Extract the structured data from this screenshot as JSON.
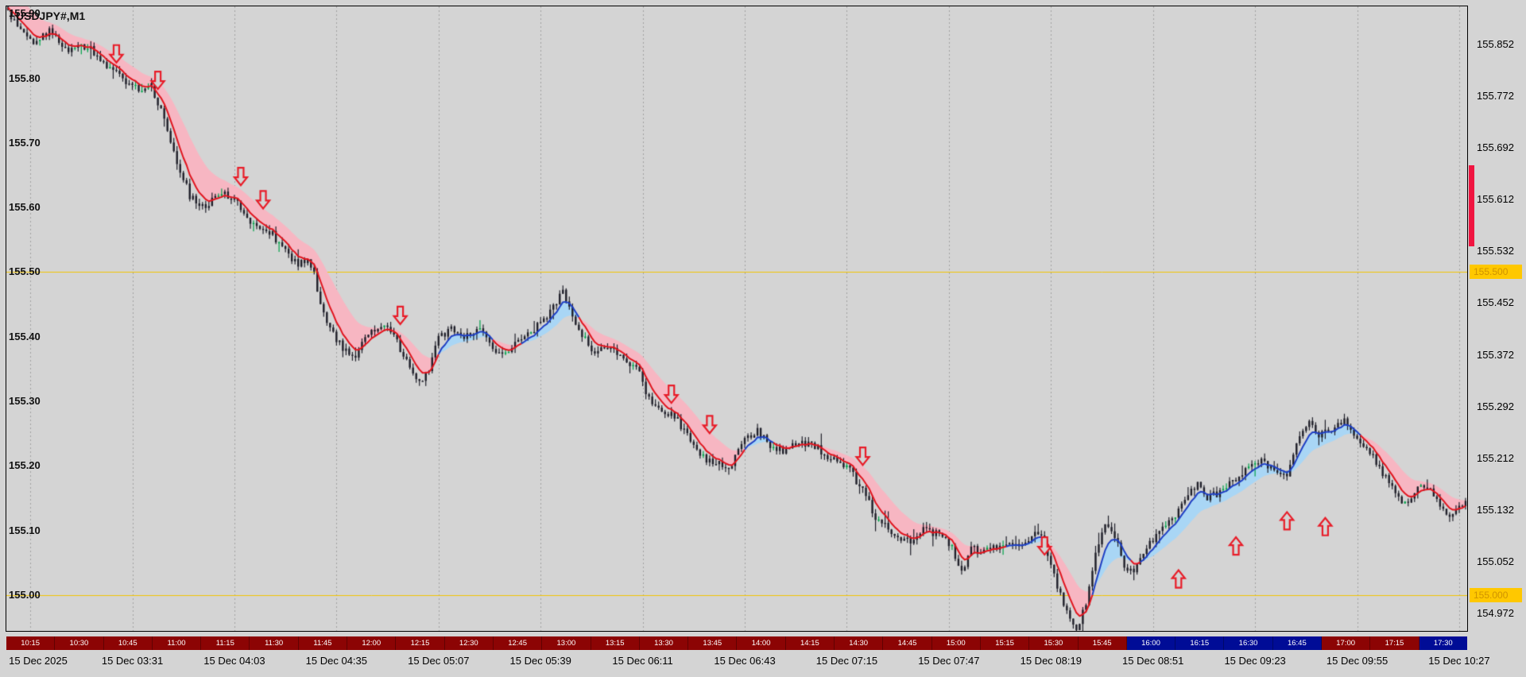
{
  "chart": {
    "title": "USDJPY#,M1"
  },
  "colors": {
    "app_bg": "#d4d4d4",
    "chart_bg": "#d4d4d4",
    "frame_border": "#000000",
    "grid": "rgba(80,80,80,0.38)",
    "candle": "#20202a",
    "candle_accent": "#00a24a",
    "band_up": "#a9d6f5",
    "band_down": "#f7b6c2",
    "line_up": "#1e3fc4",
    "line_down": "#e1141e",
    "arrow": "#e81c28",
    "level_line": "#f2c400",
    "level_badge_bg": "#ffc800",
    "level_badge_fg": "#cf9300",
    "scale_marker": "#f01440",
    "axis_text": "#000000",
    "session_text": "#ffffff",
    "session_down": "#8c0404",
    "session_up": "#000c96"
  },
  "chart_data": {
    "type": "candlestick",
    "title": "USDJPY#,M1",
    "symbol": "USDJPY#",
    "timeframe": "M1",
    "x_axis": {
      "labels": [
        "15 Dec 2025",
        "15 Dec 03:31",
        "15 Dec 04:03",
        "15 Dec 04:35",
        "15 Dec 05:07",
        "15 Dec 05:39",
        "15 Dec 06:11",
        "15 Dec 06:43",
        "15 Dec 07:15",
        "15 Dec 07:47",
        "15 Dec 08:19",
        "15 Dec 08:51",
        "15 Dec 09:23",
        "15 Dec 09:55",
        "15 Dec 10:27"
      ],
      "label_candle_indices": [
        7,
        39,
        71,
        103,
        135,
        167,
        199,
        231,
        263,
        295,
        327,
        359,
        391,
        423,
        455
      ],
      "candle_count": 458
    },
    "y_axis": {
      "min": 154.9445,
      "max": 155.9115,
      "ticks": [
        155.852,
        155.772,
        155.692,
        155.612,
        155.532,
        155.452,
        155.372,
        155.292,
        155.212,
        155.132,
        155.052,
        154.972
      ],
      "tick_labels": [
        "155.852",
        "155.772",
        "155.692",
        "155.612",
        "155.532",
        "155.452",
        "155.372",
        "155.292",
        "155.212",
        "155.132",
        "155.052",
        "154.972"
      ]
    },
    "inner_price_labels": [
      {
        "price": 155.9,
        "label": "155.90"
      },
      {
        "price": 155.8,
        "label": "155.80"
      },
      {
        "price": 155.7,
        "label": "155.70"
      },
      {
        "price": 155.6,
        "label": "155.60"
      },
      {
        "price": 155.5,
        "label": "155.50"
      },
      {
        "price": 155.4,
        "label": "155.40"
      },
      {
        "price": 155.3,
        "label": "155.30"
      },
      {
        "price": 155.2,
        "label": "155.20"
      },
      {
        "price": 155.1,
        "label": "155.10"
      },
      {
        "price": 155.0,
        "label": "155.00"
      }
    ],
    "horizontal_lines": [
      {
        "price": 155.5,
        "label": "155.500"
      },
      {
        "price": 155.0,
        "label": "155.000"
      }
    ],
    "scale_marker": {
      "from": 155.665,
      "to": 155.54
    },
    "moving_average": {
      "fast_period": 6,
      "slow_period": 18,
      "initial_offset_fast": 0.005,
      "initial_offset_slow": 0.045
    },
    "signals": {
      "sell": [
        [
          34,
          155.838
        ],
        [
          47,
          155.797
        ],
        [
          73,
          155.648
        ],
        [
          80,
          155.612
        ],
        [
          123,
          155.433
        ],
        [
          208,
          155.311
        ],
        [
          220,
          155.264
        ],
        [
          268,
          155.215
        ],
        [
          325,
          155.076
        ]
      ],
      "buy": [
        [
          367,
          155.025
        ],
        [
          385,
          155.076
        ],
        [
          401,
          155.115
        ],
        [
          413,
          155.106
        ]
      ]
    },
    "session_strip": {
      "labels": [
        "10:15",
        "10:30",
        "10:45",
        "11:00",
        "11:15",
        "11:30",
        "11:45",
        "12:00",
        "12:15",
        "12:30",
        "12:45",
        "13:00",
        "13:15",
        "13:30",
        "13:45",
        "14:00",
        "14:15",
        "14:30",
        "14:45",
        "15:00",
        "15:15",
        "15:30",
        "15:45",
        "16:00",
        "16:15",
        "16:30",
        "16:45",
        "17:00",
        "17:15",
        "17:30"
      ],
      "colors": [
        "#8c0404",
        "#8c0404",
        "#8c0404",
        "#8c0404",
        "#8c0404",
        "#8c0404",
        "#8c0404",
        "#8c0404",
        "#8c0404",
        "#8c0404",
        "#8c0404",
        "#8c0404",
        "#8c0404",
        "#8c0404",
        "#8c0404",
        "#8c0404",
        "#8c0404",
        "#8c0404",
        "#8c0404",
        "#8c0404",
        "#8c0404",
        "#8c0404",
        "#8c0404",
        "#000c96",
        "#000c96",
        "#000c96",
        "#000c96",
        "#8c0404",
        "#8c0404",
        "#000c96"
      ]
    },
    "random_seed": 13,
    "price_path": [
      [
        0,
        155.905
      ],
      [
        3,
        155.882
      ],
      [
        8,
        155.858
      ],
      [
        13,
        155.872
      ],
      [
        19,
        155.845
      ],
      [
        25,
        155.85
      ],
      [
        30,
        155.822
      ],
      [
        36,
        155.8
      ],
      [
        40,
        155.785
      ],
      [
        45,
        155.788
      ],
      [
        48,
        155.748
      ],
      [
        51,
        155.7
      ],
      [
        54,
        155.658
      ],
      [
        57,
        155.618
      ],
      [
        62,
        155.602
      ],
      [
        66,
        155.622
      ],
      [
        71,
        155.615
      ],
      [
        75,
        155.582
      ],
      [
        78,
        155.566
      ],
      [
        83,
        155.558
      ],
      [
        87,
        155.532
      ],
      [
        91,
        155.512
      ],
      [
        94,
        155.52
      ],
      [
        96,
        155.502
      ],
      [
        98,
        155.445
      ],
      [
        101,
        155.412
      ],
      [
        105,
        155.382
      ],
      [
        109,
        155.372
      ],
      [
        113,
        155.408
      ],
      [
        117,
        155.42
      ],
      [
        120,
        155.41
      ],
      [
        123,
        155.382
      ],
      [
        126,
        155.352
      ],
      [
        129,
        155.326
      ],
      [
        132,
        155.35
      ],
      [
        135,
        155.398
      ],
      [
        139,
        155.41
      ],
      [
        143,
        155.4
      ],
      [
        148,
        155.41
      ],
      [
        152,
        155.382
      ],
      [
        156,
        155.375
      ],
      [
        160,
        155.39
      ],
      [
        165,
        155.412
      ],
      [
        169,
        155.43
      ],
      [
        174,
        155.47
      ],
      [
        176,
        155.442
      ],
      [
        180,
        155.402
      ],
      [
        184,
        155.372
      ],
      [
        189,
        155.386
      ],
      [
        194,
        155.365
      ],
      [
        198,
        155.345
      ],
      [
        201,
        155.302
      ],
      [
        206,
        155.286
      ],
      [
        210,
        155.27
      ],
      [
        213,
        155.246
      ],
      [
        218,
        155.212
      ],
      [
        223,
        155.202
      ],
      [
        226,
        155.19
      ],
      [
        230,
        155.236
      ],
      [
        235,
        155.256
      ],
      [
        239,
        155.23
      ],
      [
        243,
        155.222
      ],
      [
        248,
        155.236
      ],
      [
        253,
        155.23
      ],
      [
        258,
        155.212
      ],
      [
        263,
        155.2
      ],
      [
        268,
        155.162
      ],
      [
        272,
        155.122
      ],
      [
        277,
        155.096
      ],
      [
        283,
        155.082
      ],
      [
        287,
        155.1
      ],
      [
        292,
        155.095
      ],
      [
        296,
        155.076
      ],
      [
        299,
        155.032
      ],
      [
        302,
        155.072
      ],
      [
        306,
        155.066
      ],
      [
        311,
        155.076
      ],
      [
        316,
        155.08
      ],
      [
        320,
        155.086
      ],
      [
        323,
        155.1
      ],
      [
        326,
        155.062
      ],
      [
        329,
        155.012
      ],
      [
        332,
        154.976
      ],
      [
        335,
        154.946
      ],
      [
        338,
        154.986
      ],
      [
        341,
        155.06
      ],
      [
        344,
        155.112
      ],
      [
        347,
        155.09
      ],
      [
        350,
        155.046
      ],
      [
        353,
        155.03
      ],
      [
        356,
        155.066
      ],
      [
        361,
        155.1
      ],
      [
        365,
        155.116
      ],
      [
        369,
        155.146
      ],
      [
        373,
        155.176
      ],
      [
        376,
        155.15
      ],
      [
        380,
        155.16
      ],
      [
        385,
        155.18
      ],
      [
        389,
        155.2
      ],
      [
        393,
        155.21
      ],
      [
        397,
        155.19
      ],
      [
        401,
        155.186
      ],
      [
        405,
        155.25
      ],
      [
        408,
        155.272
      ],
      [
        411,
        155.246
      ],
      [
        415,
        155.256
      ],
      [
        419,
        155.27
      ],
      [
        423,
        155.246
      ],
      [
        427,
        155.22
      ],
      [
        430,
        155.196
      ],
      [
        434,
        155.166
      ],
      [
        438,
        155.14
      ],
      [
        442,
        155.17
      ],
      [
        446,
        155.16
      ],
      [
        449,
        155.136
      ],
      [
        452,
        155.126
      ],
      [
        457,
        155.146
      ]
    ]
  }
}
